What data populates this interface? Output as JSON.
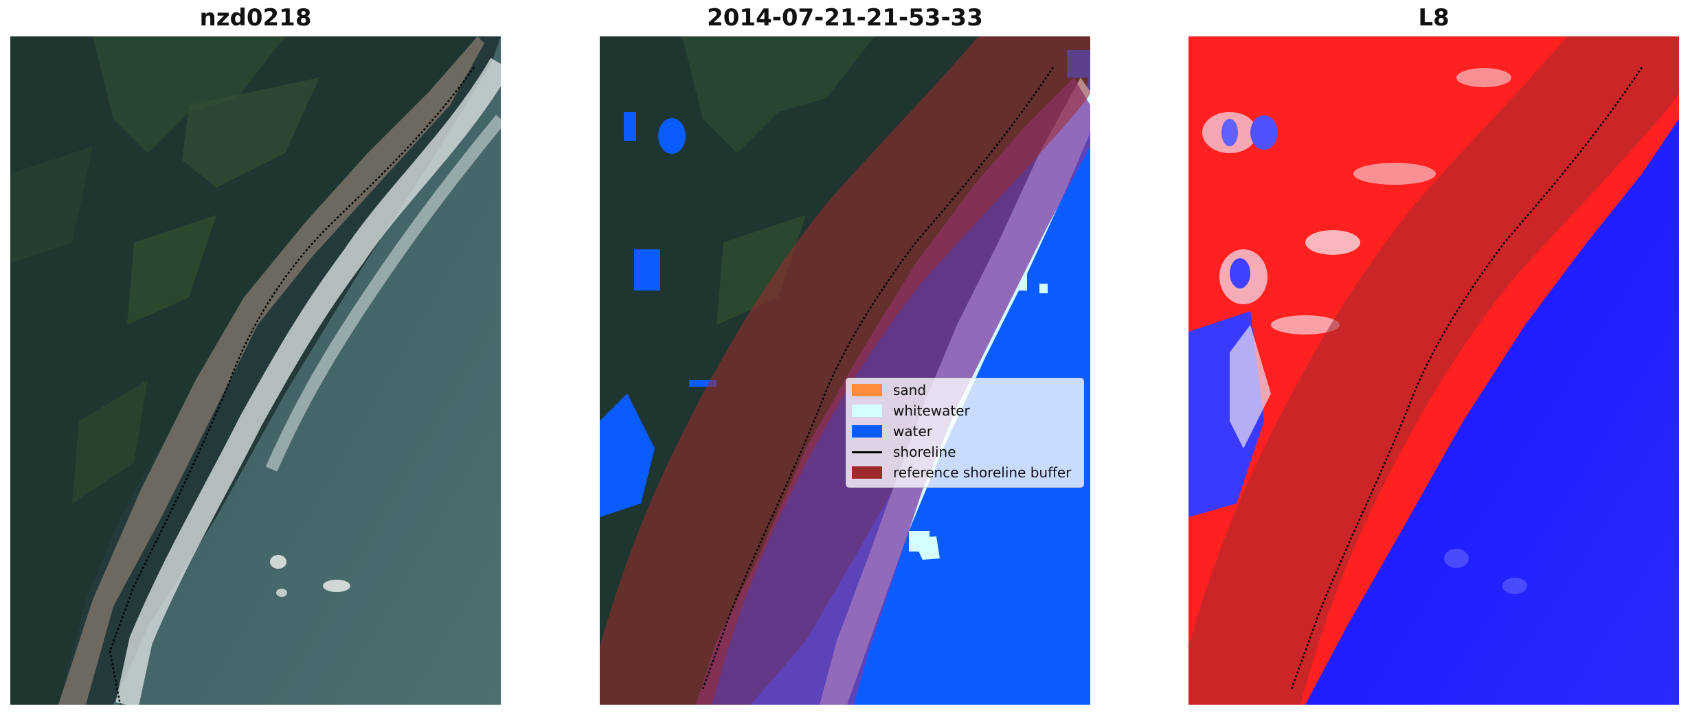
{
  "panels": [
    {
      "title": "nzd0218"
    },
    {
      "title": "2014-07-21-21-53-33"
    },
    {
      "title": "L8"
    }
  ],
  "legend": {
    "items": [
      {
        "label": "sand",
        "color": "#ff8c3a"
      },
      {
        "label": "whitewater",
        "color": "#d4fdff"
      },
      {
        "label": "water",
        "color": "#0a5cff"
      },
      {
        "label": "shoreline",
        "color": "#000000"
      },
      {
        "label": "reference shoreline buffer",
        "color": "#9e2a2e"
      }
    ]
  }
}
